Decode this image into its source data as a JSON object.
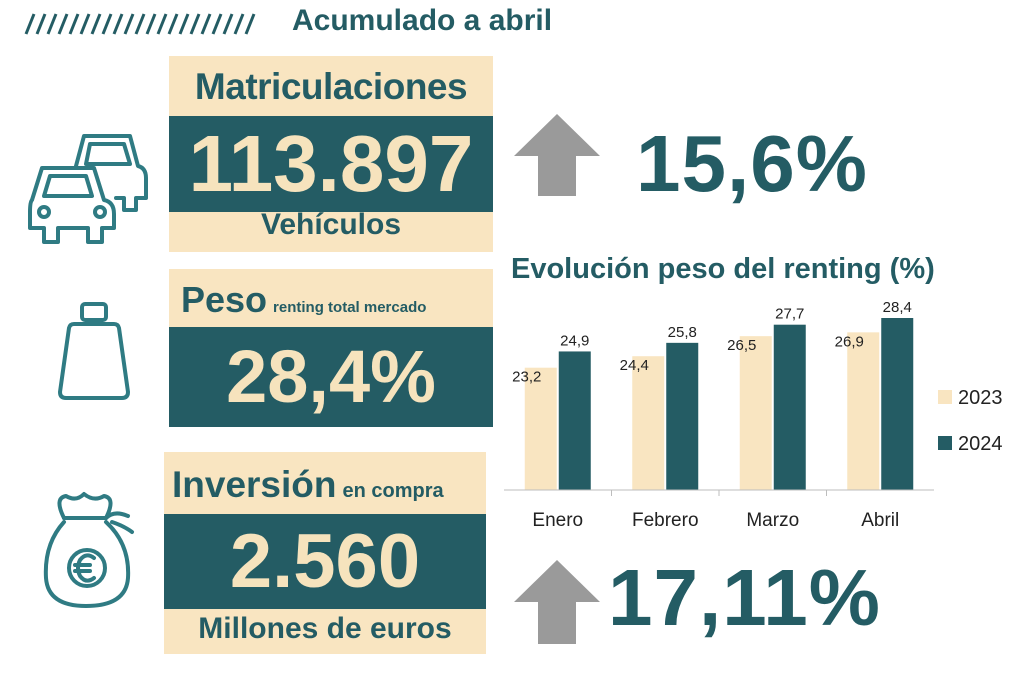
{
  "header": {
    "title": "Acumulado a abril"
  },
  "registrations": {
    "title": "Matriculaciones",
    "value": "113.897",
    "unit": "Vehículos",
    "change": "15,6%"
  },
  "weight": {
    "title": "Peso",
    "subtitle": "renting total mercado",
    "value": "28,4%"
  },
  "investment": {
    "title": "Inversión",
    "subtitle": "en compra",
    "value": "2.560",
    "unit": "Millones de euros",
    "change": "17,11%"
  },
  "colors": {
    "teal": "#245c64",
    "cream": "#f9e5c1",
    "arrow": "#9a9a9a"
  },
  "icons": [
    "cars-icon",
    "weight-icon",
    "money-bag-icon",
    "up-arrow-icon"
  ],
  "chart_data": {
    "type": "bar",
    "title": "Evolución peso del renting (%)",
    "categories": [
      "Enero",
      "Febrero",
      "Marzo",
      "Abril"
    ],
    "series": [
      {
        "name": "2023",
        "color": "#f9e5c1",
        "values": [
          23.2,
          24.4,
          26.5,
          26.9
        ],
        "labels": [
          "23,2",
          "24,4",
          "26,5",
          "26,9"
        ]
      },
      {
        "name": "2024",
        "color": "#245c64",
        "values": [
          24.9,
          25.8,
          27.7,
          28.4
        ],
        "labels": [
          "24,9",
          "25,8",
          "27,7",
          "28,4"
        ]
      }
    ],
    "ylim": [
      0,
      30
    ],
    "grid": false,
    "legend": "right"
  }
}
